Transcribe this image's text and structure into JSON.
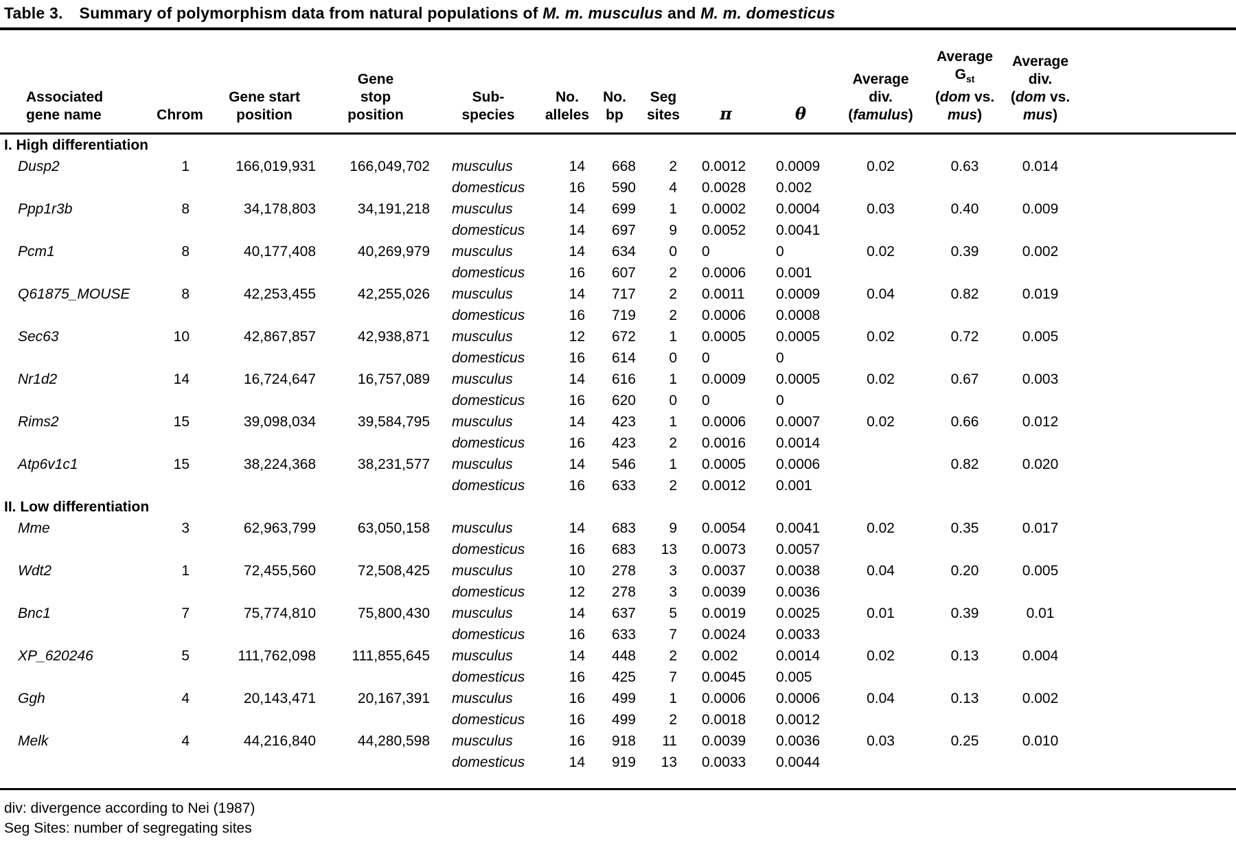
{
  "colors": {
    "background": "#ffffff",
    "text": "#000000",
    "rule": "#000000"
  },
  "title": {
    "label": "Table 3.",
    "parts": [
      {
        "t": "Summary of polymorphism data from natural populations of "
      },
      {
        "t": "M. m. musculus",
        "i": true
      },
      {
        "t": " and "
      },
      {
        "t": "M. m. domesticus",
        "i": true
      }
    ]
  },
  "columns": [
    {
      "id": "gene",
      "lines": [
        [
          {
            "t": "Associated"
          }
        ],
        [
          {
            "t": "gene name"
          }
        ]
      ]
    },
    {
      "id": "chrom",
      "lines": [
        [
          {
            "t": "Chrom"
          }
        ]
      ]
    },
    {
      "id": "start",
      "lines": [
        [
          {
            "t": "Gene start"
          }
        ],
        [
          {
            "t": "position"
          }
        ]
      ]
    },
    {
      "id": "stop",
      "lines": [
        [
          {
            "t": "Gene"
          }
        ],
        [
          {
            "t": "stop"
          }
        ],
        [
          {
            "t": "position"
          }
        ]
      ]
    },
    {
      "id": "sub",
      "lines": [
        [
          {
            "t": "Sub-"
          }
        ],
        [
          {
            "t": "species"
          }
        ]
      ]
    },
    {
      "id": "alleles",
      "lines": [
        [
          {
            "t": "No."
          }
        ],
        [
          {
            "t": "alleles"
          }
        ]
      ]
    },
    {
      "id": "bp",
      "lines": [
        [
          {
            "t": "No."
          }
        ],
        [
          {
            "t": "bp"
          }
        ]
      ]
    },
    {
      "id": "seg",
      "lines": [
        [
          {
            "t": "Seg"
          }
        ],
        [
          {
            "t": "sites"
          }
        ]
      ]
    },
    {
      "id": "pi",
      "lines": [
        [
          {
            "t": "π",
            "i": true
          }
        ]
      ]
    },
    {
      "id": "theta",
      "lines": [
        [
          {
            "t": "θ",
            "i": true
          }
        ]
      ]
    },
    {
      "id": "fam",
      "lines": [
        [
          {
            "t": "Average"
          }
        ],
        [
          {
            "t": "div."
          }
        ],
        [
          {
            "t": "("
          },
          {
            "t": "famulus",
            "i": true
          },
          {
            "t": ")"
          }
        ]
      ]
    },
    {
      "id": "gst",
      "lines": [
        [
          {
            "t": "Average"
          }
        ],
        [
          {
            "t": "G"
          },
          {
            "t": "st",
            "sub": true
          }
        ],
        [
          {
            "t": "("
          },
          {
            "t": "dom",
            "i": true
          },
          {
            "t": " vs."
          }
        ],
        [
          {
            "t": "mus",
            "i": true
          },
          {
            "t": ")"
          }
        ]
      ]
    },
    {
      "id": "div",
      "lines": [
        [
          {
            "t": "Average"
          }
        ],
        [
          {
            "t": "div."
          }
        ],
        [
          {
            "t": "("
          },
          {
            "t": "dom",
            "i": true
          },
          {
            "t": " vs."
          }
        ],
        [
          {
            "t": "mus",
            "i": true
          },
          {
            "t": ")"
          }
        ]
      ]
    }
  ],
  "sections": [
    {
      "heading": "I. High differentiation",
      "genes": [
        {
          "name": "Dusp2",
          "chrom": "1",
          "start": "166,019,931",
          "stop": "166,049,702",
          "rows": [
            {
              "sub": "musculus",
              "alleles": "14",
              "bp": "668",
              "seg": "2",
              "pi": "0.0012",
              "theta": "0.0009"
            },
            {
              "sub": "domesticus",
              "alleles": "16",
              "bp": "590",
              "seg": "4",
              "pi": "0.0028",
              "theta": "0.002"
            }
          ],
          "fam": "0.02",
          "gst": "0.63",
          "div": "0.014"
        },
        {
          "name": "Ppp1r3b",
          "chrom": "8",
          "start": "34,178,803",
          "stop": "34,191,218",
          "rows": [
            {
              "sub": "musculus",
              "alleles": "14",
              "bp": "699",
              "seg": "1",
              "pi": "0.0002",
              "theta": "0.0004"
            },
            {
              "sub": "domesticus",
              "alleles": "14",
              "bp": "697",
              "seg": "9",
              "pi": "0.0052",
              "theta": "0.0041"
            }
          ],
          "fam": "0.03",
          "gst": "0.40",
          "div": "0.009"
        },
        {
          "name": "Pcm1",
          "chrom": "8",
          "start": "40,177,408",
          "stop": "40,269,979",
          "rows": [
            {
              "sub": "musculus",
              "alleles": "14",
              "bp": "634",
              "seg": "0",
              "pi": "0",
              "theta": "0"
            },
            {
              "sub": "domesticus",
              "alleles": "16",
              "bp": "607",
              "seg": "2",
              "pi": "0.0006",
              "theta": "0.001"
            }
          ],
          "fam": "0.02",
          "gst": "0.39",
          "div": "0.002"
        },
        {
          "name": "Q61875_MOUSE",
          "chrom": "8",
          "start": "42,253,455",
          "stop": "42,255,026",
          "rows": [
            {
              "sub": "musculus",
              "alleles": "14",
              "bp": "717",
              "seg": "2",
              "pi": "0.0011",
              "theta": "0.0009"
            },
            {
              "sub": "domesticus",
              "alleles": "16",
              "bp": "719",
              "seg": "2",
              "pi": "0.0006",
              "theta": "0.0008"
            }
          ],
          "fam": "0.04",
          "gst": "0.82",
          "div": "0.019"
        },
        {
          "name": "Sec63",
          "chrom": "10",
          "start": "42,867,857",
          "stop": "42,938,871",
          "rows": [
            {
              "sub": "musculus",
              "alleles": "12",
              "bp": "672",
              "seg": "1",
              "pi": "0.0005",
              "theta": "0.0005"
            },
            {
              "sub": "domesticus",
              "alleles": "16",
              "bp": "614",
              "seg": "0",
              "pi": "0",
              "theta": "0"
            }
          ],
          "fam": "0.02",
          "gst": "0.72",
          "div": "0.005"
        },
        {
          "name": "Nr1d2",
          "chrom": "14",
          "start": "16,724,647",
          "stop": "16,757,089",
          "rows": [
            {
              "sub": "musculus",
              "alleles": "14",
              "bp": "616",
              "seg": "1",
              "pi": "0.0009",
              "theta": "0.0005"
            },
            {
              "sub": "domesticus",
              "alleles": "16",
              "bp": "620",
              "seg": "0",
              "pi": "0",
              "theta": "0"
            }
          ],
          "fam": "0.02",
          "gst": "0.67",
          "div": "0.003"
        },
        {
          "name": "Rims2",
          "chrom": "15",
          "start": "39,098,034",
          "stop": "39,584,795",
          "rows": [
            {
              "sub": "musculus",
              "alleles": "14",
              "bp": "423",
              "seg": "1",
              "pi": "0.0006",
              "theta": "0.0007"
            },
            {
              "sub": "domesticus",
              "alleles": "16",
              "bp": "423",
              "seg": "2",
              "pi": "0.0016",
              "theta": "0.0014"
            }
          ],
          "fam": "0.02",
          "gst": "0.66",
          "div": "0.012"
        },
        {
          "name": "Atp6v1c1",
          "chrom": "15",
          "start": "38,224,368",
          "stop": "38,231,577",
          "rows": [
            {
              "sub": "musculus",
              "alleles": "14",
              "bp": "546",
              "seg": "1",
              "pi": "0.0005",
              "theta": "0.0006"
            },
            {
              "sub": "domesticus",
              "alleles": "16",
              "bp": "633",
              "seg": "2",
              "pi": "0.0012",
              "theta": "0.001"
            }
          ],
          "fam": "",
          "gst": "0.82",
          "div": "0.020"
        }
      ]
    },
    {
      "heading": "II. Low differentiation",
      "genes": [
        {
          "name": "Mme",
          "chrom": "3",
          "start": "62,963,799",
          "stop": "63,050,158",
          "rows": [
            {
              "sub": "musculus",
              "alleles": "14",
              "bp": "683",
              "seg": "9",
              "pi": "0.0054",
              "theta": "0.0041"
            },
            {
              "sub": "domesticus",
              "alleles": "16",
              "bp": "683",
              "seg": "13",
              "pi": "0.0073",
              "theta": "0.0057"
            }
          ],
          "fam": "0.02",
          "gst": "0.35",
          "div": "0.017"
        },
        {
          "name": "Wdt2",
          "chrom": "1",
          "start": "72,455,560",
          "stop": "72,508,425",
          "rows": [
            {
              "sub": "musculus",
              "alleles": "10",
              "bp": "278",
              "seg": "3",
              "pi": "0.0037",
              "theta": "0.0038"
            },
            {
              "sub": "domesticus",
              "alleles": "12",
              "bp": "278",
              "seg": "3",
              "pi": "0.0039",
              "theta": "0.0036"
            }
          ],
          "fam": "0.04",
          "gst": "0.20",
          "div": "0.005"
        },
        {
          "name": "Bnc1",
          "chrom": "7",
          "start": "75,774,810",
          "stop": "75,800,430",
          "rows": [
            {
              "sub": "musculus",
              "alleles": "14",
              "bp": "637",
              "seg": "5",
              "pi": "0.0019",
              "theta": "0.0025"
            },
            {
              "sub": "domesticus",
              "alleles": "16",
              "bp": "633",
              "seg": "7",
              "pi": "0.0024",
              "theta": "0.0033"
            }
          ],
          "fam": "0.01",
          "gst": "0.39",
          "div": "0.01"
        },
        {
          "name": "XP_620246",
          "chrom": "5",
          "start": "111,762,098",
          "stop": "111,855,645",
          "rows": [
            {
              "sub": "musculus",
              "alleles": "14",
              "bp": "448",
              "seg": "2",
              "pi": "0.002",
              "theta": "0.0014"
            },
            {
              "sub": "domesticus",
              "alleles": "16",
              "bp": "425",
              "seg": "7",
              "pi": "0.0045",
              "theta": "0.005"
            }
          ],
          "fam": "0.02",
          "gst": "0.13",
          "div": "0.004"
        },
        {
          "name": "Ggh",
          "chrom": "4",
          "start": "20,143,471",
          "stop": "20,167,391",
          "rows": [
            {
              "sub": "musculus",
              "alleles": "16",
              "bp": "499",
              "seg": "1",
              "pi": "0.0006",
              "theta": "0.0006"
            },
            {
              "sub": "domesticus",
              "alleles": "16",
              "bp": "499",
              "seg": "2",
              "pi": "0.0018",
              "theta": "0.0012"
            }
          ],
          "fam": "0.04",
          "gst": "0.13",
          "div": "0.002"
        },
        {
          "name": "Melk",
          "chrom": "4",
          "start": "44,216,840",
          "stop": "44,280,598",
          "rows": [
            {
              "sub": "musculus",
              "alleles": "16",
              "bp": "918",
              "seg": "11",
              "pi": "0.0039",
              "theta": "0.0036"
            },
            {
              "sub": "domesticus",
              "alleles": "14",
              "bp": "919",
              "seg": "13",
              "pi": "0.0033",
              "theta": "0.0044"
            }
          ],
          "fam": "0.03",
          "gst": "0.25",
          "div": "0.010"
        }
      ]
    }
  ],
  "footnotes": [
    "div: divergence according to Nei (1987)",
    "Seg Sites: number of segregating sites"
  ]
}
